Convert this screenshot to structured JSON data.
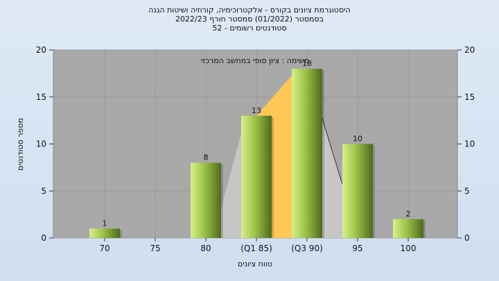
{
  "chart_data": {
    "type": "bar",
    "title_lines": [
      "היסטוגרמת ציונים בקורס - אלקטרוכימיה, קורוזיה ושיטות הגנה",
      "בסמסטר  (01/2022)  סמסטר חורף  2022/23",
      "סטודנטים רשומים - 52"
    ],
    "annotation": "משימה : ציון סופי במחשב המרכזי",
    "xlabel": "טווח ציונים",
    "ylabel": "מספר סטודנטים",
    "categories": [
      "70",
      "75",
      "80",
      "(Q1 85)",
      "(Q3 90)",
      "95",
      "100"
    ],
    "values": [
      1,
      0,
      8,
      13,
      18,
      10,
      2
    ],
    "data_labels": [
      "1",
      "",
      "8",
      "13",
      "18",
      "10",
      "2"
    ],
    "yticks": [
      0,
      5,
      10,
      15,
      20
    ],
    "ylim": [
      0,
      20
    ],
    "grid": true,
    "colors": {
      "plot_bg": "#a9a9a9",
      "bar_light": "#d8f08a",
      "bar_dark": "#4f6a1e",
      "quartile_fill": "#ffc857",
      "tail_fill": "#c6c6c6"
    }
  }
}
